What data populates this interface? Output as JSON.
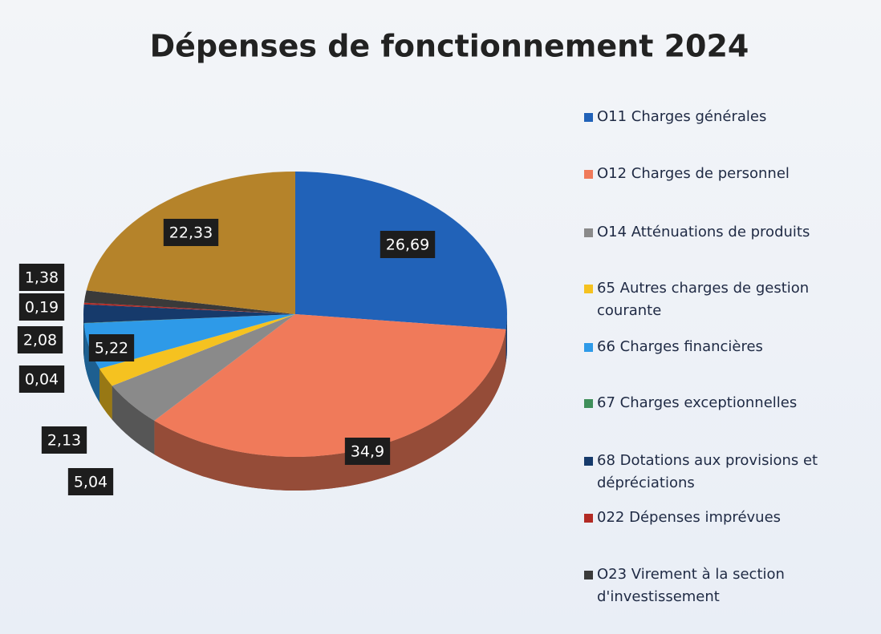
{
  "chart_data": {
    "type": "pie",
    "title": "Dépenses de fonctionnement  2024",
    "categories": [
      "O11 Charges générales",
      "O12 Charges de personnel",
      "O14 Atténuations de produits",
      "65 Autres charges de gestion courante",
      "66 Charges financières",
      "67 Charges exceptionnelles",
      "68 Dotations aux provisions et dépréciations",
      "022 Dépenses imprévues",
      "O23 Virement à la section d'investissement",
      null
    ],
    "values": [
      26.69,
      34.9,
      5.04,
      2.13,
      5.22,
      0.04,
      2.08,
      0.19,
      1.38,
      22.33
    ],
    "value_labels": [
      "26,69",
      "34,9",
      "5,04",
      "2,13",
      "5,22",
      "0,04",
      "2,08",
      "0,19",
      "1,38",
      "22,33"
    ],
    "colors": [
      "#2162b8",
      "#f07a5a",
      "#8a8a8a",
      "#f5c220",
      "#2e9ae8",
      "#3f8f5a",
      "#163a6b",
      "#b22a24",
      "#3a3a3a",
      "#b5832a"
    ],
    "legend": "right"
  }
}
